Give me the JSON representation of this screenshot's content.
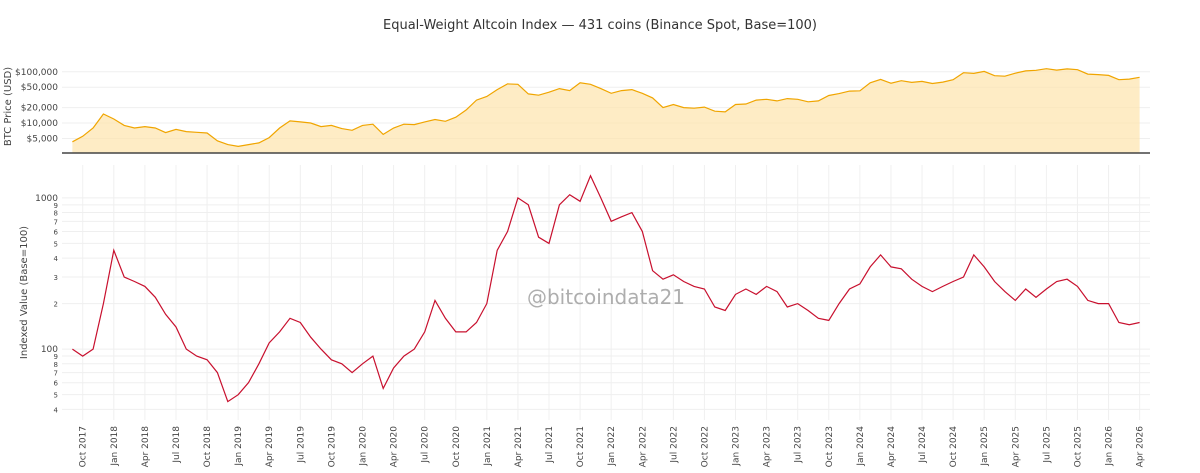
{
  "chart_data": [
    {
      "type": "area",
      "title": "Equal-Weight Altcoin Index — 431 coins (Binance Spot, Base=100)",
      "y_label": "BTC Price (USD)",
      "color": "#f0a500",
      "fill": "#fde4ad",
      "log_y": true,
      "grid": true,
      "xlim": [
        "2017-08",
        "2026-05"
      ],
      "ylim": [
        2600,
        170000
      ],
      "yticks": [
        {
          "value": 5000,
          "label": "$5,000"
        },
        {
          "value": 10000,
          "label": "$10,000"
        },
        {
          "value": 20000,
          "label": "$20,000"
        },
        {
          "value": 50000,
          "label": "$50,000"
        },
        {
          "value": 100000,
          "label": "$100,000"
        }
      ],
      "x": [
        "2017-09",
        "2017-10",
        "2017-11",
        "2017-12",
        "2018-01",
        "2018-02",
        "2018-03",
        "2018-04",
        "2018-05",
        "2018-06",
        "2018-07",
        "2018-08",
        "2018-09",
        "2018-10",
        "2018-11",
        "2018-12",
        "2019-01",
        "2019-02",
        "2019-03",
        "2019-04",
        "2019-05",
        "2019-06",
        "2019-07",
        "2019-08",
        "2019-09",
        "2019-10",
        "2019-11",
        "2019-12",
        "2020-01",
        "2020-02",
        "2020-03",
        "2020-04",
        "2020-05",
        "2020-06",
        "2020-07",
        "2020-08",
        "2020-09",
        "2020-10",
        "2020-11",
        "2020-12",
        "2021-01",
        "2021-02",
        "2021-03",
        "2021-04",
        "2021-05",
        "2021-06",
        "2021-07",
        "2021-08",
        "2021-09",
        "2021-10",
        "2021-11",
        "2021-12",
        "2022-01",
        "2022-02",
        "2022-03",
        "2022-04",
        "2022-05",
        "2022-06",
        "2022-07",
        "2022-08",
        "2022-09",
        "2022-10",
        "2022-11",
        "2022-12",
        "2023-01",
        "2023-02",
        "2023-03",
        "2023-04",
        "2023-05",
        "2023-06",
        "2023-07",
        "2023-08",
        "2023-09",
        "2023-10",
        "2023-11",
        "2023-12",
        "2024-01",
        "2024-02",
        "2024-03",
        "2024-04",
        "2024-05",
        "2024-06",
        "2024-07",
        "2024-08",
        "2024-09",
        "2024-10",
        "2024-11",
        "2024-12",
        "2025-01",
        "2025-02",
        "2025-03",
        "2025-04",
        "2025-05",
        "2025-06",
        "2025-07",
        "2025-08",
        "2025-09",
        "2025-10",
        "2025-11",
        "2025-12",
        "2026-01",
        "2026-02",
        "2026-03",
        "2026-04"
      ],
      "values": [
        4300,
        5500,
        8000,
        15000,
        12000,
        9000,
        8000,
        8500,
        8000,
        6500,
        7500,
        6800,
        6600,
        6400,
        4500,
        3800,
        3500,
        3800,
        4100,
        5200,
        8000,
        11000,
        10500,
        10000,
        8500,
        9000,
        7800,
        7200,
        9000,
        9500,
        6000,
        8000,
        9500,
        9300,
        10500,
        11700,
        10800,
        13000,
        18000,
        28000,
        33000,
        45000,
        58000,
        57000,
        37000,
        35000,
        40000,
        47000,
        43000,
        61000,
        57000,
        47000,
        38000,
        43000,
        45000,
        38000,
        31000,
        20000,
        23000,
        20000,
        19500,
        20500,
        17000,
        16500,
        23000,
        23500,
        28000,
        29000,
        27000,
        30000,
        29000,
        26000,
        27000,
        34500,
        37500,
        42000,
        42500,
        61000,
        71000,
        60000,
        67000,
        62000,
        65000,
        59000,
        63000,
        70000,
        96000,
        93000,
        102000,
        84000,
        82000,
        94000,
        104000,
        107000,
        115000,
        108000,
        114000,
        110000,
        90000,
        88000,
        85000,
        70000,
        72000,
        78000
      ]
    },
    {
      "type": "line",
      "y_label": "Indexed Value (Base=100)",
      "watermark": "@bitcoindata21",
      "color": "#c8102e",
      "log_y": true,
      "grid": true,
      "xlim": [
        "2017-08",
        "2026-05"
      ],
      "ylim": [
        34,
        1650
      ],
      "yticks": [
        {
          "value": 40,
          "label": "4"
        },
        {
          "value": 50,
          "label": "5"
        },
        {
          "value": 60,
          "label": "6"
        },
        {
          "value": 70,
          "label": "7"
        },
        {
          "value": 80,
          "label": "8"
        },
        {
          "value": 90,
          "label": "9"
        },
        100,
        {
          "value": 200,
          "label": "2"
        },
        {
          "value": 300,
          "label": "3"
        },
        {
          "value": 400,
          "label": "4"
        },
        {
          "value": 500,
          "label": "5"
        },
        {
          "value": 600,
          "label": "6"
        },
        {
          "value": 700,
          "label": "7"
        },
        {
          "value": 800,
          "label": "8"
        },
        {
          "value": 900,
          "label": "9"
        },
        1000
      ],
      "xticks": [
        {
          "value": "2017-10",
          "label": "Oct 2017"
        },
        {
          "value": "2018-01",
          "label": "Jan 2018"
        },
        {
          "value": "2018-04",
          "label": "Apr 2018"
        },
        {
          "value": "2018-07",
          "label": "Jul 2018"
        },
        {
          "value": "2018-10",
          "label": "Oct 2018"
        },
        {
          "value": "2019-01",
          "label": "Jan 2019"
        },
        {
          "value": "2019-04",
          "label": "Apr 2019"
        },
        {
          "value": "2019-07",
          "label": "Jul 2019"
        },
        {
          "value": "2019-10",
          "label": "Oct 2019"
        },
        {
          "value": "2020-01",
          "label": "Jan 2020"
        },
        {
          "value": "2020-04",
          "label": "Apr 2020"
        },
        {
          "value": "2020-07",
          "label": "Jul 2020"
        },
        {
          "value": "2020-10",
          "label": "Oct 2020"
        },
        {
          "value": "2021-01",
          "label": "Jan 2021"
        },
        {
          "value": "2021-04",
          "label": "Apr 2021"
        },
        {
          "value": "2021-07",
          "label": "Jul 2021"
        },
        {
          "value": "2021-10",
          "label": "Oct 2021"
        },
        {
          "value": "2022-01",
          "label": "Jan 2022"
        },
        {
          "value": "2022-04",
          "label": "Apr 2022"
        },
        {
          "value": "2022-07",
          "label": "Jul 2022"
        },
        {
          "value": "2022-10",
          "label": "Oct 2022"
        },
        {
          "value": "2023-01",
          "label": "Jan 2023"
        },
        {
          "value": "2023-04",
          "label": "Apr 2023"
        },
        {
          "value": "2023-07",
          "label": "Jul 2023"
        },
        {
          "value": "2023-10",
          "label": "Oct 2023"
        },
        {
          "value": "2024-01",
          "label": "Jan 2024"
        },
        {
          "value": "2024-04",
          "label": "Apr 2024"
        },
        {
          "value": "2024-07",
          "label": "Jul 2024"
        },
        {
          "value": "2024-10",
          "label": "Oct 2024"
        },
        {
          "value": "2025-01",
          "label": "Jan 2025"
        },
        {
          "value": "2025-04",
          "label": "Apr 2025"
        },
        {
          "value": "2025-07",
          "label": "Jul 2025"
        },
        {
          "value": "2025-10",
          "label": "Oct 2025"
        },
        {
          "value": "2026-01",
          "label": "Jan 2026"
        },
        {
          "value": "2026-04",
          "label": "Apr 2026"
        }
      ],
      "x": [
        "2017-09",
        "2017-10",
        "2017-11",
        "2017-12",
        "2018-01",
        "2018-02",
        "2018-03",
        "2018-04",
        "2018-05",
        "2018-06",
        "2018-07",
        "2018-08",
        "2018-09",
        "2018-10",
        "2018-11",
        "2018-12",
        "2019-01",
        "2019-02",
        "2019-03",
        "2019-04",
        "2019-05",
        "2019-06",
        "2019-07",
        "2019-08",
        "2019-09",
        "2019-10",
        "2019-11",
        "2019-12",
        "2020-01",
        "2020-02",
        "2020-03",
        "2020-04",
        "2020-05",
        "2020-06",
        "2020-07",
        "2020-08",
        "2020-09",
        "2020-10",
        "2020-11",
        "2020-12",
        "2021-01",
        "2021-02",
        "2021-03",
        "2021-04",
        "2021-05",
        "2021-06",
        "2021-07",
        "2021-08",
        "2021-09",
        "2021-10",
        "2021-11",
        "2021-12",
        "2022-01",
        "2022-02",
        "2022-03",
        "2022-04",
        "2022-05",
        "2022-06",
        "2022-07",
        "2022-08",
        "2022-09",
        "2022-10",
        "2022-11",
        "2022-12",
        "2023-01",
        "2023-02",
        "2023-03",
        "2023-04",
        "2023-05",
        "2023-06",
        "2023-07",
        "2023-08",
        "2023-09",
        "2023-10",
        "2023-11",
        "2023-12",
        "2024-01",
        "2024-02",
        "2024-03",
        "2024-04",
        "2024-05",
        "2024-06",
        "2024-07",
        "2024-08",
        "2024-09",
        "2024-10",
        "2024-11",
        "2024-12",
        "2025-01",
        "2025-02",
        "2025-03",
        "2025-04",
        "2025-05",
        "2025-06",
        "2025-07",
        "2025-08",
        "2025-09",
        "2025-10",
        "2025-11",
        "2025-12",
        "2026-01",
        "2026-02",
        "2026-03",
        "2026-04"
      ],
      "values": [
        100,
        90,
        100,
        200,
        450,
        300,
        280,
        260,
        220,
        170,
        140,
        100,
        90,
        85,
        70,
        45,
        50,
        60,
        80,
        110,
        130,
        160,
        150,
        120,
        100,
        85,
        80,
        70,
        80,
        90,
        55,
        75,
        90,
        100,
        130,
        210,
        160,
        130,
        130,
        150,
        200,
        450,
        600,
        1000,
        900,
        550,
        500,
        900,
        1050,
        950,
        1400,
        1000,
        700,
        750,
        800,
        600,
        330,
        290,
        310,
        280,
        260,
        250,
        190,
        180,
        230,
        250,
        230,
        260,
        240,
        190,
        200,
        180,
        160,
        155,
        200,
        250,
        270,
        350,
        420,
        350,
        340,
        290,
        260,
        240,
        260,
        280,
        300,
        420,
        350,
        280,
        240,
        210,
        250,
        220,
        250,
        280,
        290,
        260,
        210,
        200,
        200,
        150,
        145,
        150
      ]
    }
  ]
}
